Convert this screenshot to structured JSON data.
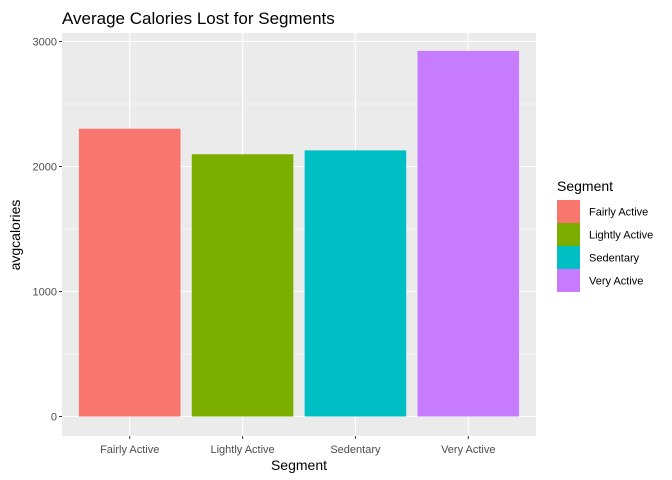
{
  "chart_data": {
    "type": "bar",
    "title": "Average Calories Lost  for Segments",
    "xlabel": "Segment",
    "ylabel": "avgcalories",
    "categories": [
      "Fairly Active",
      "Lightly Active",
      "Sedentary",
      "Very Active"
    ],
    "values": [
      2302,
      2098,
      2129,
      2925
    ],
    "colors": [
      "#F8766D",
      "#7CAE00",
      "#00BFC4",
      "#C77CFF"
    ],
    "ylim": [
      0,
      3000
    ],
    "yticks": [
      "0",
      "1000",
      "2000",
      "3000"
    ],
    "grid": true,
    "panel_background": "#EBEBEB",
    "legend": {
      "title": "Segment",
      "placement": "right",
      "entries": [
        "Fairly Active",
        "Lightly Active",
        "Sedentary",
        "Very Active"
      ]
    }
  }
}
